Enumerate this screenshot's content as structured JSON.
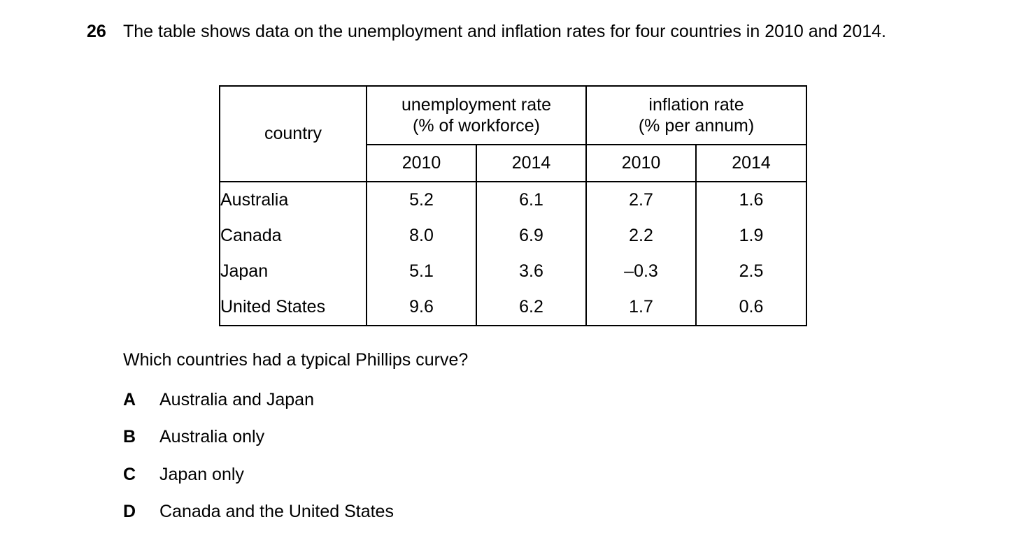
{
  "question": {
    "number": "26",
    "stem": "The table shows data on the unemployment and inflation rates for four countries in 2010 and 2014.",
    "prompt": "Which countries had a typical Phillips curve?"
  },
  "table": {
    "country_header": "country",
    "unemployment_header_line1": "unemployment rate",
    "unemployment_header_line2": "(% of workforce)",
    "inflation_header_line1": "inflation rate",
    "inflation_header_line2": "(% per annum)",
    "years": [
      "2010",
      "2014",
      "2010",
      "2014"
    ],
    "rows": [
      {
        "country": "Australia",
        "u2010": "5.2",
        "u2014": "6.1",
        "i2010": "2.7",
        "i2014": "1.6"
      },
      {
        "country": "Canada",
        "u2010": "8.0",
        "u2014": "6.9",
        "i2010": "2.2",
        "i2014": "1.9"
      },
      {
        "country": "Japan",
        "u2010": "5.1",
        "u2014": "3.6",
        "i2010": "–0.3",
        "i2014": "2.5"
      },
      {
        "country": "United States",
        "u2010": "9.6",
        "u2014": "6.2",
        "i2010": "1.7",
        "i2014": "0.6"
      }
    ]
  },
  "options": [
    {
      "letter": "A",
      "text": "Australia and Japan"
    },
    {
      "letter": "B",
      "text": "Australia only"
    },
    {
      "letter": "C",
      "text": "Japan only"
    },
    {
      "letter": "D",
      "text": "Canada and the United States"
    }
  ]
}
